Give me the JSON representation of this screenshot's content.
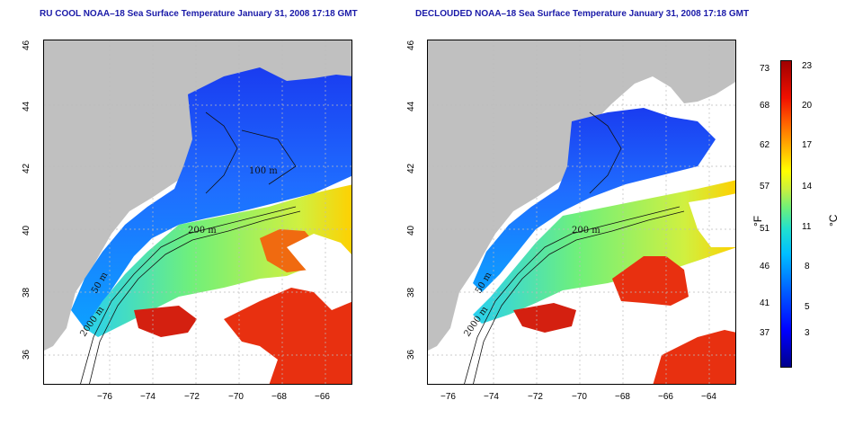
{
  "panels": [
    {
      "title": "RU COOL NOAA–18 Sea Surface Temperature January 31, 2008 17:18 GMT"
    },
    {
      "title": "DECLOUDED NOAA–18 Sea Surface Temperature January 31, 2008 17:18 GMT"
    }
  ],
  "axes": {
    "lon_ticks": [
      "−76",
      "−74",
      "−72",
      "−70",
      "−68",
      "−66",
      "−64"
    ],
    "lat_ticks": [
      "46",
      "44",
      "42",
      "40",
      "38",
      "36"
    ]
  },
  "contours": {
    "labels": [
      "200 m",
      "100 m",
      "50 m",
      "2000 m",
      "200 m"
    ]
  },
  "colorbar": {
    "fahrenheit_ticks": [
      "73",
      "68",
      "62",
      "57",
      "51",
      "46",
      "41",
      "37"
    ],
    "celsius_ticks": [
      "23",
      "20",
      "17",
      "14",
      "11",
      "8",
      "5",
      "3"
    ],
    "unit_f": "°F",
    "unit_c": "°C",
    "colors": [
      "#00008c",
      "#0000ff",
      "#00bfff",
      "#6ef07a",
      "#ffff00",
      "#ff6000",
      "#a00000"
    ]
  },
  "land_color": "#c0c0c0",
  "cloud_color": "#ffffff"
}
